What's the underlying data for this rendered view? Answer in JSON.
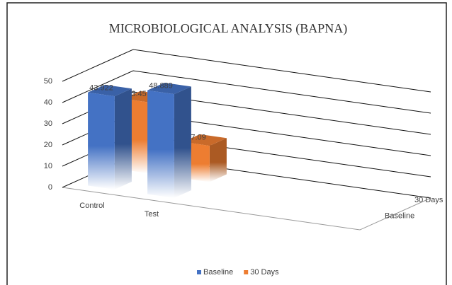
{
  "chart_data": {
    "type": "bar3d",
    "title": "MICROBIOLOGICAL ANALYSIS (BAPNA)",
    "categories": [
      "Control",
      "Test"
    ],
    "series": [
      {
        "name": "Baseline",
        "color": "#4472c4",
        "values": [
          43.922,
          48.889
        ]
      },
      {
        "name": "30 Days",
        "color": "#ed7d31",
        "values": [
          33.45,
          17.09
        ]
      }
    ],
    "ylim": [
      0,
      50
    ],
    "yticks": [
      0,
      10,
      20,
      30,
      40,
      50
    ],
    "grid": true,
    "legend": "bottom"
  }
}
